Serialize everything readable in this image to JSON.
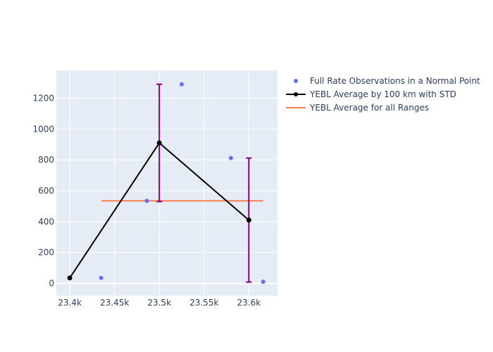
{
  "chart_data": {
    "type": "scatter",
    "xlim": [
      23385,
      23632
    ],
    "ylim": [
      -80,
      1380
    ],
    "x_ticks": [
      23400,
      23450,
      23500,
      23550,
      23600
    ],
    "x_tick_labels": [
      "23.4k",
      "23.45k",
      "23.5k",
      "23.55k",
      "23.6k"
    ],
    "y_ticks": [
      0,
      200,
      400,
      600,
      800,
      1000,
      1200
    ],
    "y_tick_labels": [
      "0",
      "200",
      "400",
      "600",
      "800",
      "1000",
      "1200"
    ],
    "grid": true,
    "legend_position": "right",
    "series": [
      {
        "name": "Full Rate Observations in a Normal Point",
        "kind": "markers",
        "color": "#636efa",
        "x": [
          23435,
          23486,
          23525,
          23580,
          23616
        ],
        "y": [
          35,
          535,
          1290,
          812,
          10
        ]
      },
      {
        "name": "YEBL Average by 100 km with STD",
        "kind": "lines+markers",
        "color": "#000000",
        "error_color": "#800080",
        "x": [
          23400,
          23500,
          23600
        ],
        "y": [
          35,
          910,
          410
        ],
        "error": [
          null,
          380,
          402
        ]
      },
      {
        "name": "YEBL Average for all Ranges",
        "kind": "line",
        "color": "#ff7f50",
        "x": [
          23435,
          23616
        ],
        "y": [
          535,
          535
        ]
      }
    ]
  }
}
